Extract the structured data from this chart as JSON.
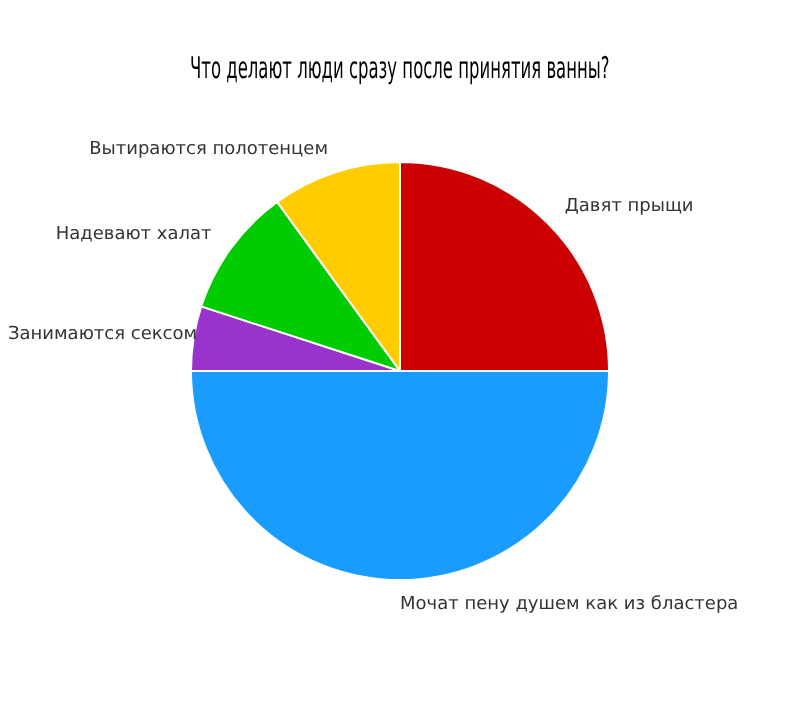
{
  "chart_data": {
    "type": "pie",
    "title": "Что делают люди сразу после принятия ванны?",
    "categories": [
      "Давят прыщи",
      "Мочат пену душем как из бластера",
      "Занимаются сексом",
      "Надевают халат",
      "Вытираются полотенцем"
    ],
    "values": [
      25,
      50,
      5,
      10,
      10
    ],
    "colors": [
      "#cc0000",
      "#1a9cff",
      "#9933cc",
      "#00cc00",
      "#ffcc00"
    ],
    "legend": false
  }
}
